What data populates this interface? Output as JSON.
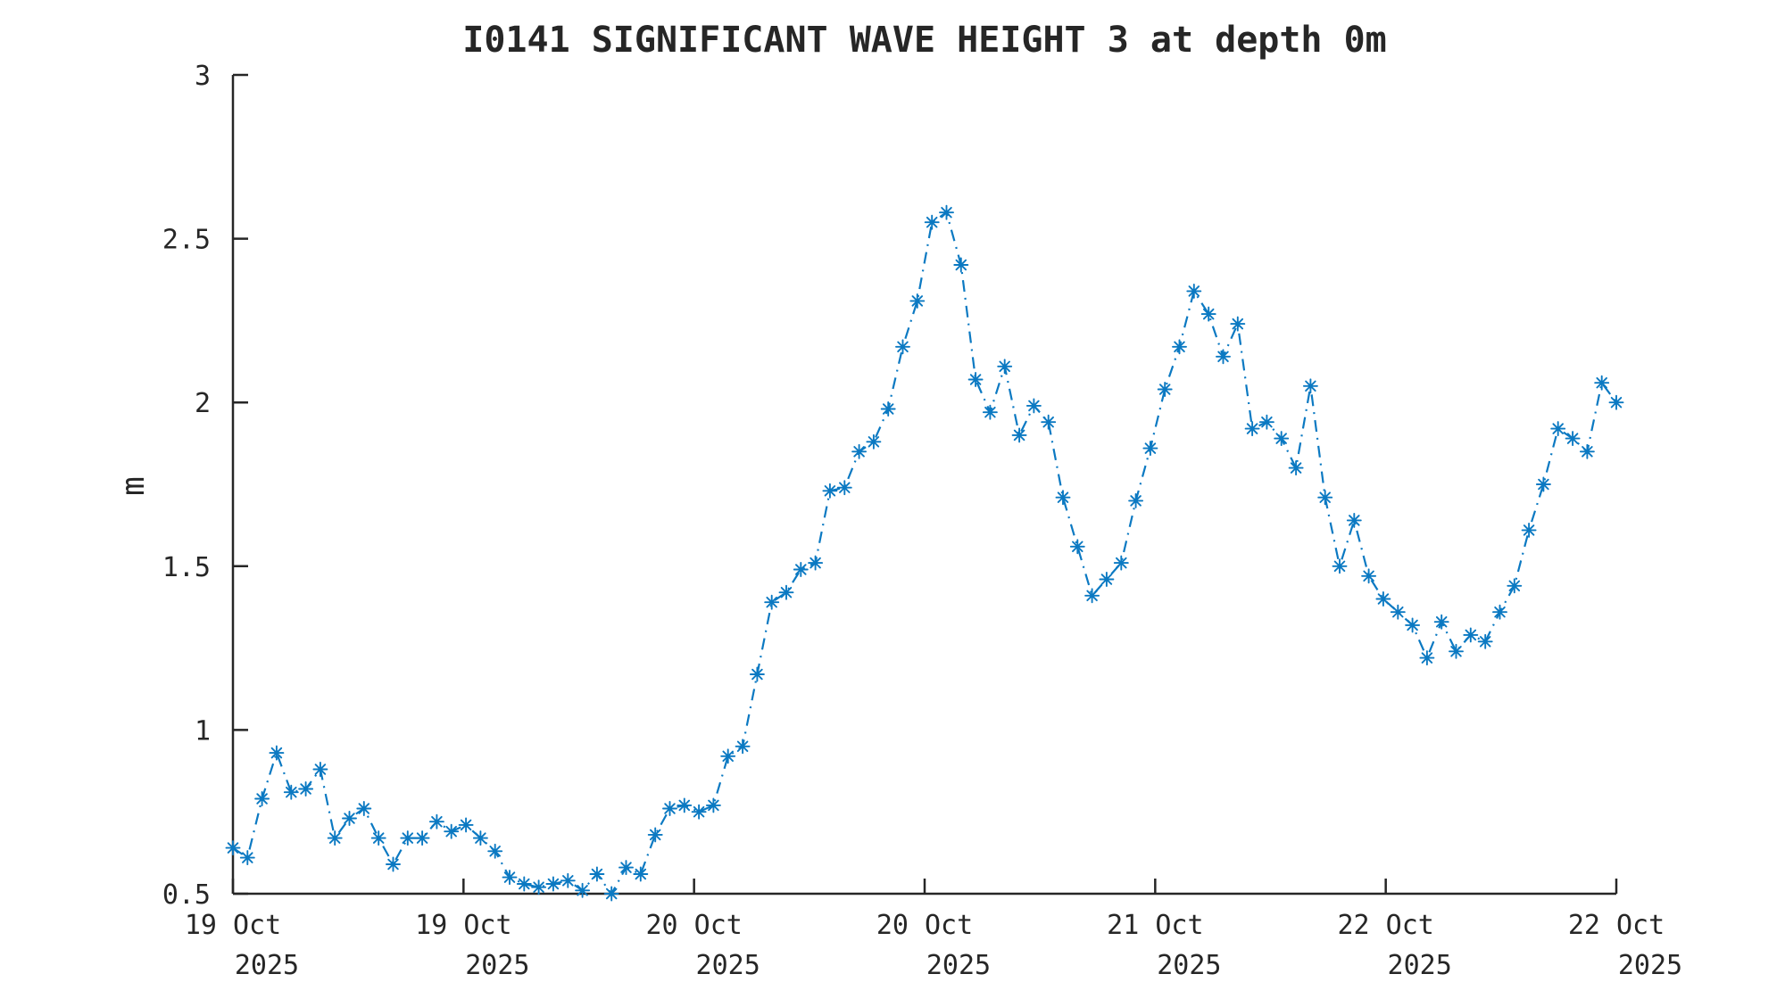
{
  "chart_data": {
    "type": "line",
    "title": "I0141 SIGNIFICANT WAVE HEIGHT 3 at depth 0m",
    "xlabel": "",
    "ylabel": "m",
    "ylim": [
      0.5,
      3.0
    ],
    "yticks": [
      0.5,
      1.0,
      1.5,
      2.0,
      2.5,
      3.0
    ],
    "ytick_labels": [
      "0.5",
      "1",
      "1.5",
      "2",
      "2.5",
      "3"
    ],
    "x_tick_labels": [
      {
        "day": "19 Oct",
        "year": "2025"
      },
      {
        "day": "19 Oct",
        "year": "2025"
      },
      {
        "day": "20 Oct",
        "year": "2025"
      },
      {
        "day": "20 Oct",
        "year": "2025"
      },
      {
        "day": "21 Oct",
        "year": "2025"
      },
      {
        "day": "22 Oct",
        "year": "2025"
      },
      {
        "day": "22 Oct",
        "year": "2025"
      }
    ],
    "x_start": "19 Oct 2025 00:00",
    "x_end": "22 Oct 2025 23:00",
    "x_interval_hours": 1,
    "grid": false,
    "legend_position": "none",
    "line_style": "dash-dot",
    "marker": "asterisk",
    "line_color": "#0b79c2",
    "axis_color": "#262626",
    "series": [
      {
        "name": "significant wave height",
        "values": [
          0.64,
          0.61,
          0.79,
          0.93,
          0.81,
          0.82,
          0.88,
          0.67,
          0.73,
          0.76,
          0.67,
          0.59,
          0.67,
          0.67,
          0.72,
          0.69,
          0.71,
          0.67,
          0.63,
          0.55,
          0.53,
          0.52,
          0.53,
          0.54,
          0.51,
          0.56,
          0.5,
          0.58,
          0.56,
          0.68,
          0.76,
          0.77,
          0.75,
          0.77,
          0.92,
          0.95,
          1.17,
          1.39,
          1.42,
          1.49,
          1.51,
          1.73,
          1.74,
          1.85,
          1.88,
          1.98,
          2.17,
          2.31,
          2.55,
          2.58,
          2.42,
          2.07,
          1.97,
          2.11,
          1.9,
          1.99,
          1.94,
          1.71,
          1.56,
          1.41,
          1.46,
          1.51,
          1.7,
          1.86,
          2.04,
          2.17,
          2.34,
          2.27,
          2.14,
          2.24,
          1.92,
          1.94,
          1.89,
          1.8,
          2.05,
          1.71,
          1.5,
          1.64,
          1.47,
          1.4,
          1.36,
          1.32,
          1.22,
          1.33,
          1.24,
          1.29,
          1.27,
          1.36,
          1.44,
          1.61,
          1.75,
          1.92,
          1.89,
          1.85,
          2.06,
          2.0
        ]
      }
    ]
  }
}
